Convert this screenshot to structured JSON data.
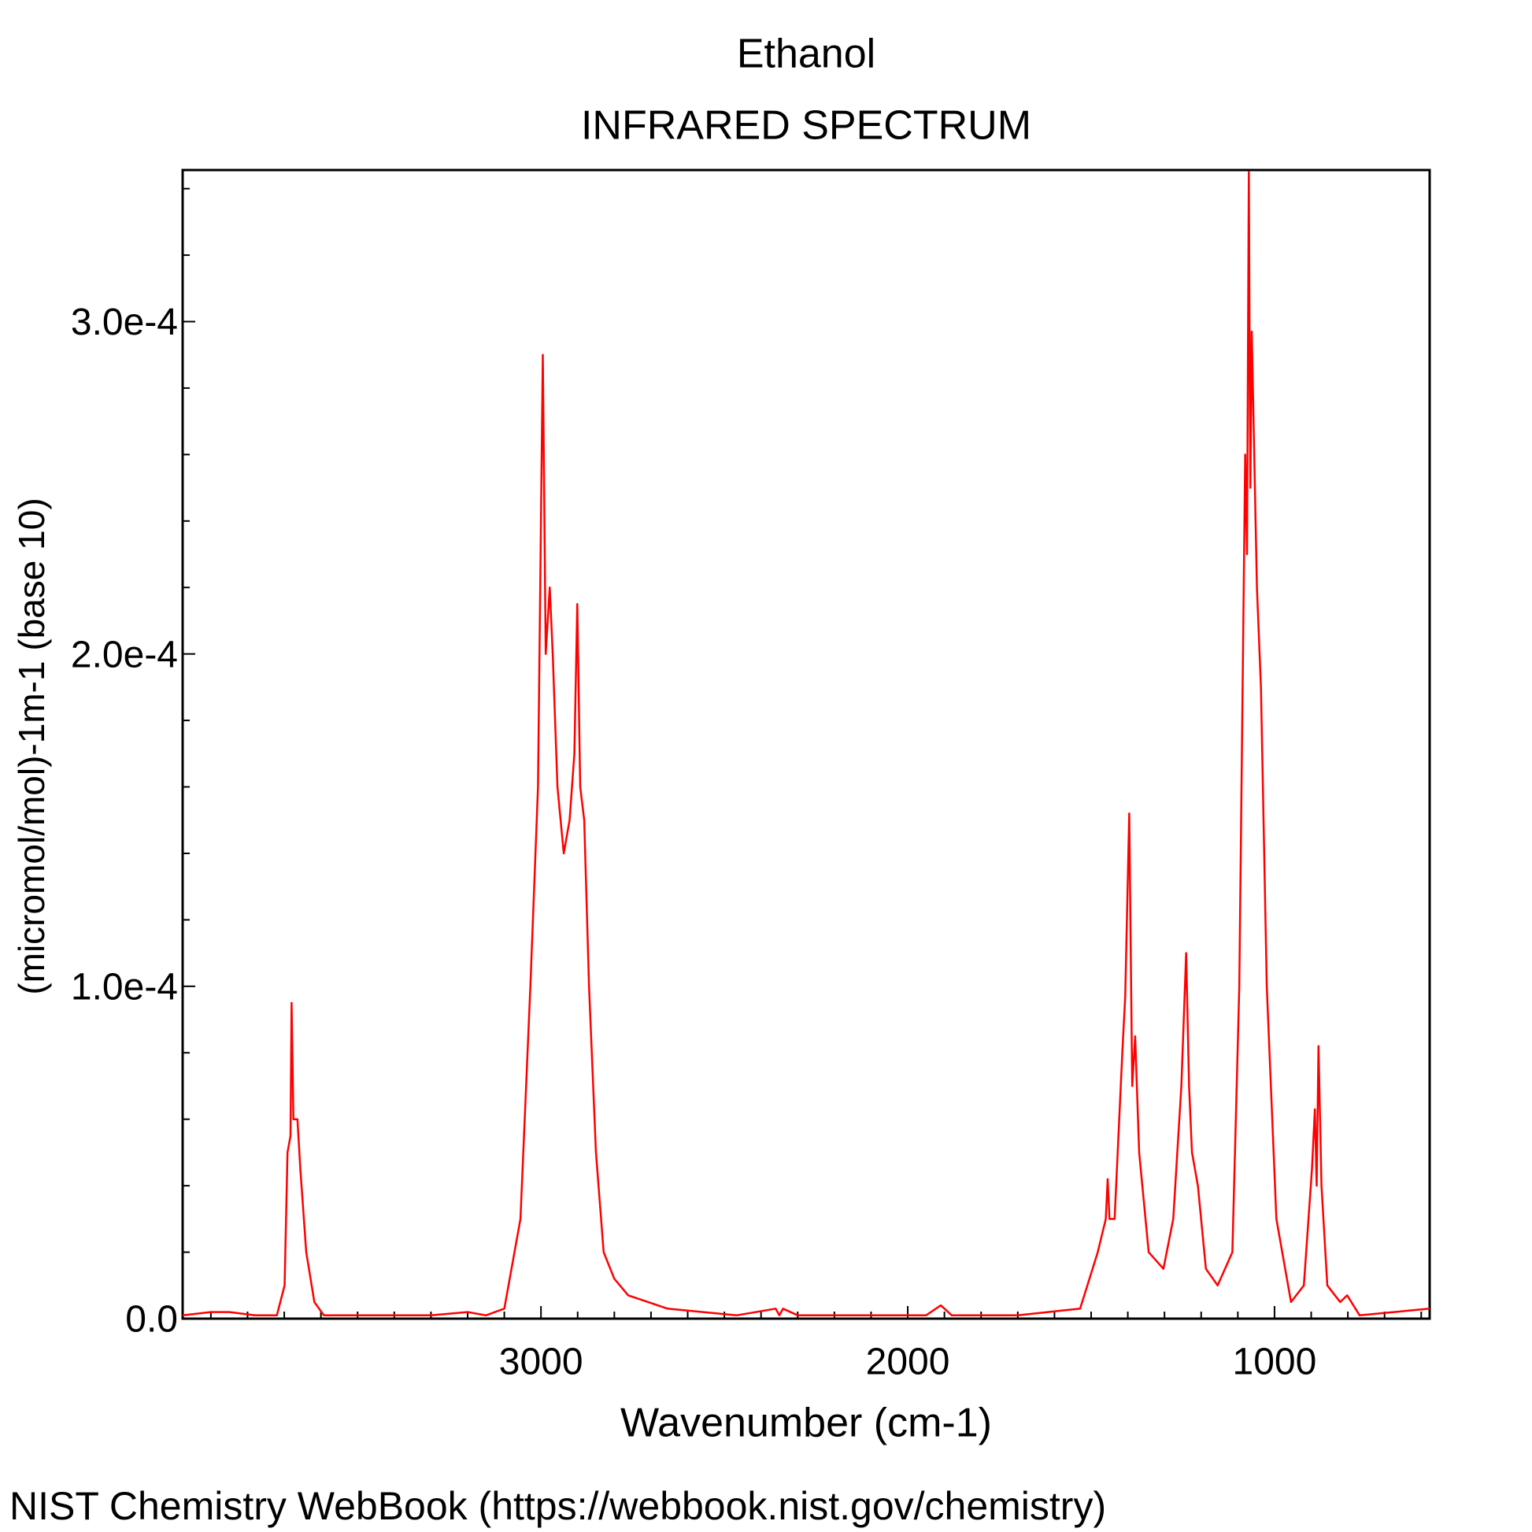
{
  "chart_data": {
    "type": "line",
    "title": "Ethanol",
    "subtitle": "INFRARED SPECTRUM",
    "xlabel": "Wavenumber (cm-1)",
    "ylabel": "(micromol/mol)-1m-1 (base 10)",
    "footer": "NIST Chemistry WebBook (https://webbook.nist.gov/chemistry)",
    "color": "#ff0000",
    "xlim": [
      3977,
      577
    ],
    "ylim": [
      0,
      0.0003456
    ],
    "xticks": [
      3000,
      2000,
      1000
    ],
    "yticks": [
      {
        "value": 0,
        "label": "0.0"
      },
      {
        "value": 0.0001,
        "label": "1.0e-4"
      },
      {
        "value": 0.0002,
        "label": "2.0e-4"
      },
      {
        "value": 0.0003,
        "label": "3.0e-4"
      }
    ],
    "xminorticks": [
      3900,
      3800,
      3700,
      3600,
      3500,
      3400,
      3300,
      3200,
      3100,
      2900,
      2800,
      2700,
      2600,
      2500,
      2400,
      2300,
      2200,
      2100,
      1900,
      1800,
      1700,
      1600,
      1500,
      1400,
      1300,
      1200,
      1100,
      900,
      800,
      700,
      600
    ],
    "yminorticks": [
      2e-05,
      4e-05,
      6e-05,
      8e-05,
      0.00012,
      0.00014,
      0.00016,
      0.00018,
      0.00022,
      0.00024,
      0.00026,
      0.00028,
      0.00032,
      0.00034
    ],
    "x": [
      3977,
      3900,
      3850,
      3780,
      3720,
      3699,
      3691,
      3683,
      3680,
      3675,
      3664,
      3656,
      3640,
      3618,
      3592,
      3500,
      3400,
      3300,
      3200,
      3150,
      3100,
      3056,
      3029,
      3008,
      2995,
      2987,
      2976,
      2968,
      2955,
      2938,
      2922,
      2909,
      2901,
      2893,
      2882,
      2869,
      2850,
      2829,
      2800,
      2762,
      2655,
      2467,
      2360,
      2350,
      2340,
      2300,
      2150,
      1950,
      1910,
      1880,
      1700,
      1530,
      1482,
      1460,
      1455,
      1450,
      1436,
      1415,
      1407,
      1396,
      1388,
      1380,
      1369,
      1343,
      1303,
      1276,
      1254,
      1241,
      1233,
      1225,
      1209,
      1187,
      1155,
      1115,
      1096,
      1080,
      1075,
      1070,
      1066,
      1062,
      1048,
      1037,
      1021,
      995,
      955,
      920,
      898,
      890,
      885,
      880,
      872,
      856,
      821,
      802,
      768,
      674,
      577
    ],
    "values": [
      1e-06,
      2e-06,
      2e-06,
      1e-06,
      1e-06,
      1e-05,
      5e-05,
      5.5e-05,
      9.5e-05,
      6e-05,
      6e-05,
      4.5e-05,
      2e-05,
      5e-06,
      1e-06,
      1e-06,
      1e-06,
      1e-06,
      2e-06,
      1e-06,
      3e-06,
      3e-05,
      0.0001,
      0.00016,
      0.00029,
      0.0002,
      0.00022,
      0.0002,
      0.00016,
      0.00014,
      0.00015,
      0.00017,
      0.000215,
      0.00016,
      0.00015,
      0.0001,
      5e-05,
      2e-05,
      1.2e-05,
      7e-06,
      3e-06,
      1e-06,
      3e-06,
      1e-06,
      3e-06,
      1e-06,
      1e-06,
      1e-06,
      4e-06,
      1e-06,
      1e-06,
      3e-06,
      2e-05,
      3e-05,
      4.2e-05,
      3e-05,
      3e-05,
      8e-05,
      9.7e-05,
      0.000152,
      7e-05,
      8.5e-05,
      5e-05,
      2e-05,
      1.5e-05,
      3e-05,
      7e-05,
      0.00011,
      7e-05,
      5e-05,
      4e-05,
      1.5e-05,
      1e-05,
      2e-05,
      0.0001,
      0.00026,
      0.00023,
      0.000345,
      0.00025,
      0.000297,
      0.00022,
      0.00019,
      0.0001,
      3e-05,
      5e-06,
      1e-05,
      4.5e-05,
      6.3e-05,
      4e-05,
      8.2e-05,
      4e-05,
      1e-05,
      5e-06,
      7e-06,
      1e-06,
      2e-06,
      3e-06
    ]
  }
}
